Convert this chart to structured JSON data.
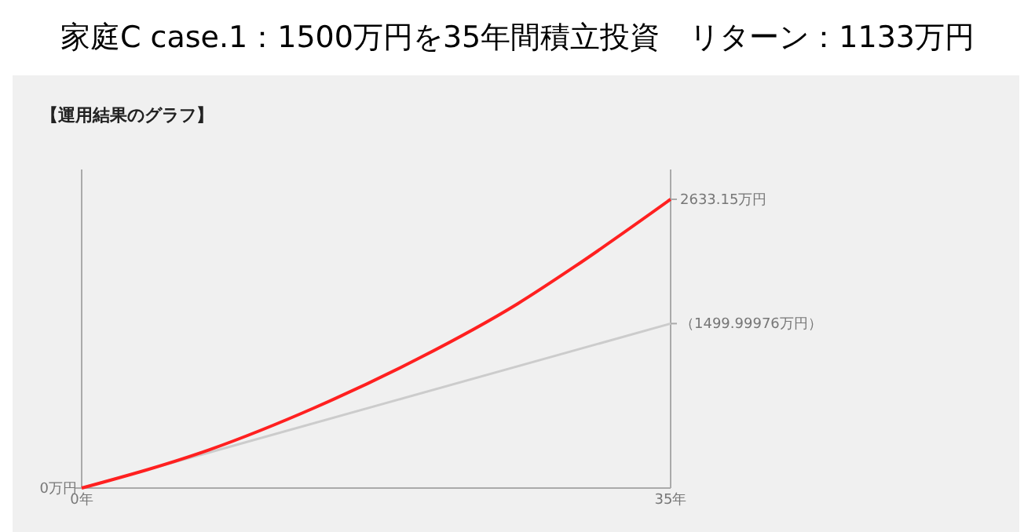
{
  "chart_data": {
    "type": "line",
    "title": "家庭C case.1：1500万円を35年間積立投資　リターン：1133万円",
    "subtitle": "【運用結果のグラフ】",
    "x": [
      0,
      35
    ],
    "series": [
      {
        "color": "#cccccc",
        "values": [
          0,
          1499.99976
        ],
        "value_labels": [
          null,
          "（1499.99976万円）"
        ]
      },
      {
        "color": "#ff2020",
        "x": [
          0,
          7.6,
          13.8,
          20,
          25.9,
          29.3,
          35
        ],
        "values": [
          0,
          350,
          730,
          1180,
          1680,
          2020,
          2633.15
        ],
        "value_labels": [
          null,
          null,
          null,
          null,
          null,
          null,
          "2633.15万円"
        ]
      }
    ],
    "xlim": [
      0,
      35
    ],
    "xticks": [
      {
        "value": 0,
        "label": "0年"
      },
      {
        "value": 35,
        "label": "35年"
      }
    ],
    "ylim": [
      0,
      2905
    ],
    "annotations": [
      {
        "text": "0万円",
        "x": 0,
        "y": 0
      }
    ],
    "marker": "none",
    "line_style": "solid"
  }
}
